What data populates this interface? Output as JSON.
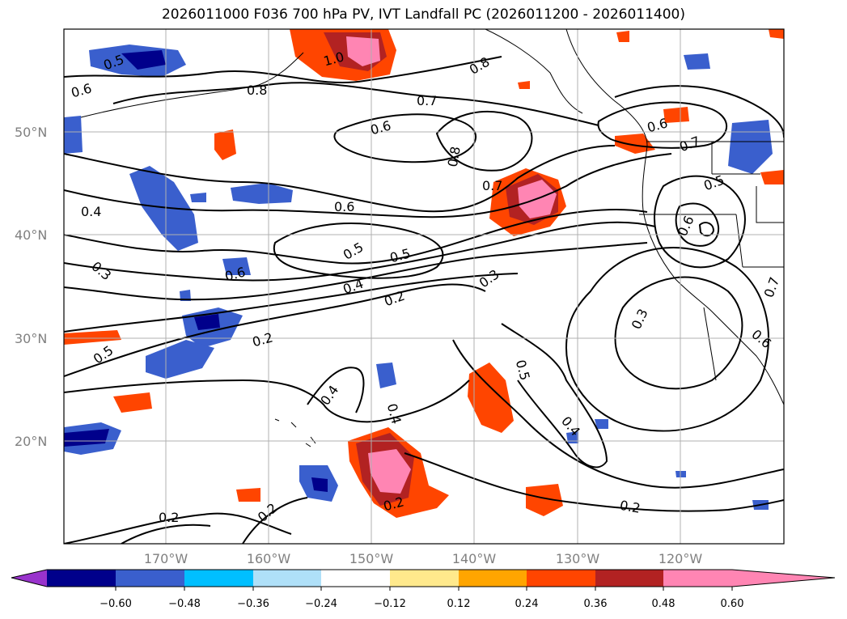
{
  "title": "2026011000 F036 700 hPa PV, IVT Landfall PC (2026011200 - 2026011400)",
  "map": {
    "lat_labels": [
      "50°N",
      "40°N",
      "30°N",
      "20°N"
    ],
    "lon_labels": [
      "170°W",
      "160°W",
      "150°W",
      "140°W",
      "130°W",
      "120°W"
    ],
    "contour_labels": [
      "0.5",
      "0.6",
      "0.8",
      "1.0",
      "0.8",
      "0.7",
      "0.6",
      "0.8",
      "0.7",
      "0.6",
      "0.7",
      "0.5",
      "0.6",
      "0.6",
      "0.4",
      "0.3",
      "0.6",
      "0.5",
      "0.5",
      "0.4",
      "0.2",
      "0.3",
      "0.3",
      "0.5",
      "0.2",
      "0.4",
      "0.5",
      "0.4",
      "0.4",
      "0.7",
      "0.6",
      "0.2",
      "0.2",
      "0.2",
      "0.2"
    ]
  },
  "colorbar": {
    "tick_labels": [
      "−0.60",
      "−0.48",
      "−0.36",
      "−0.24",
      "−0.12",
      "0.12",
      "0.24",
      "0.36",
      "0.48",
      "0.60"
    ],
    "colors": [
      "#9933cc",
      "#00008b",
      "#3a5fcd",
      "#00bfff",
      "#afe0f8",
      "#ffffff",
      "#ffe98c",
      "#ffa500",
      "#ff4500",
      "#b22222",
      "#ff85b3"
    ]
  }
}
